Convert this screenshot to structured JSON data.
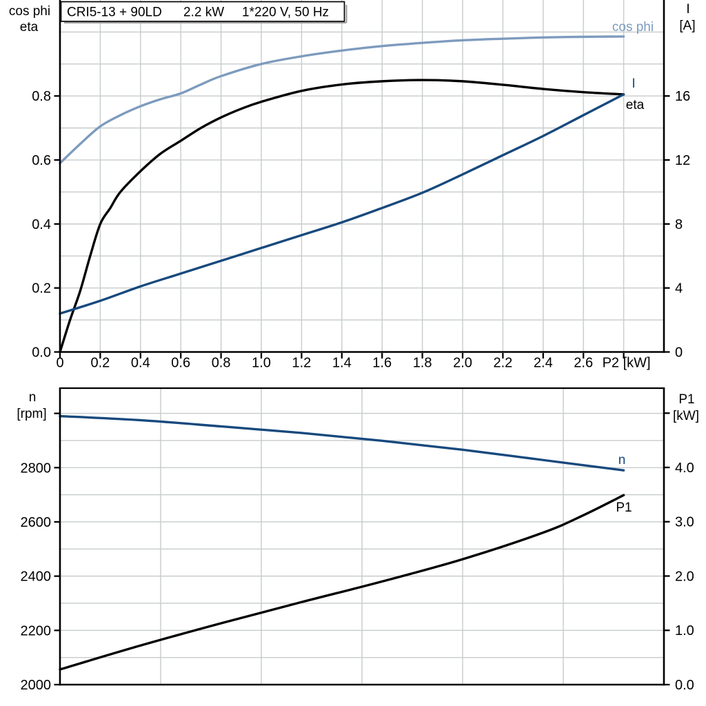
{
  "title": {
    "full": "CRI5-13 + 90LD   2.2 kW   1*220 V, 50 Hz",
    "parts": [
      "CRI5-13 + 90LD",
      "2.2 kW",
      "1*220 V, 50 Hz"
    ]
  },
  "colors": {
    "background": "#ffffff",
    "grid": "#c6cbcb",
    "axis": "#000000",
    "light_blue": "#7d9bbe",
    "dark_blue": "#17497d",
    "black": "#000000",
    "shadow": "#9a9a9a"
  },
  "chart_data": [
    {
      "type": "line",
      "title": "CRI5-13 + 90LD   2.2 kW   1*220 V, 50 Hz",
      "x_axis": {
        "label": "P2 [kW]",
        "range": [
          0,
          3.0
        ],
        "grid_step": 0.2,
        "tick_values": [
          0,
          0.2,
          0.4,
          0.6,
          0.8,
          1.0,
          1.2,
          1.4,
          1.6,
          1.8,
          2.0,
          2.2,
          2.4,
          2.6,
          2.8
        ],
        "tick_labels": [
          "0",
          "0.2",
          "0.4",
          "0.6",
          "0.8",
          "1.0",
          "1.2",
          "1.4",
          "1.6",
          "1.8",
          "2.0",
          "2.2",
          "2.4",
          "2.6",
          ""
        ],
        "label_at_value": 2.8
      },
      "y_left": {
        "label_lines": [
          "cos phi",
          "eta"
        ],
        "range": [
          0,
          1.1
        ],
        "grid_step": 0.1,
        "tick_values": [
          0,
          0.2,
          0.4,
          0.6,
          0.8
        ],
        "tick_labels": [
          "0.0",
          "0.2",
          "0.4",
          "0.6",
          "0.8"
        ]
      },
      "y_right": {
        "label_lines": [
          "I",
          "[A]"
        ],
        "range": [
          0,
          22
        ],
        "tick_values": [
          0,
          4,
          8,
          12,
          16
        ],
        "tick_labels": [
          "0",
          "4",
          "8",
          "12",
          "16"
        ]
      },
      "legend_position": "curve-end-labels",
      "grid": true,
      "series": [
        {
          "name": "cos phi",
          "axis": "left",
          "color": "#7d9bbe",
          "x": [
            0,
            0.1,
            0.2,
            0.3,
            0.4,
            0.5,
            0.6,
            0.7,
            0.8,
            1.0,
            1.2,
            1.4,
            1.6,
            1.8,
            2.0,
            2.2,
            2.4,
            2.6,
            2.8
          ],
          "y": [
            0.59,
            0.65,
            0.705,
            0.74,
            0.768,
            0.79,
            0.808,
            0.836,
            0.862,
            0.9,
            0.924,
            0.942,
            0.956,
            0.966,
            0.974,
            0.979,
            0.983,
            0.985,
            0.986
          ]
        },
        {
          "name": "eta",
          "axis": "left",
          "color": "#000000",
          "x": [
            0,
            0.05,
            0.1,
            0.15,
            0.2,
            0.25,
            0.3,
            0.4,
            0.5,
            0.6,
            0.7,
            0.8,
            0.9,
            1.0,
            1.2,
            1.4,
            1.6,
            1.8,
            2.0,
            2.2,
            2.4,
            2.6,
            2.8
          ],
          "y": [
            0,
            0.1,
            0.19,
            0.3,
            0.4,
            0.45,
            0.5,
            0.565,
            0.62,
            0.66,
            0.7,
            0.733,
            0.76,
            0.782,
            0.816,
            0.836,
            0.846,
            0.85,
            0.846,
            0.835,
            0.822,
            0.812,
            0.805
          ]
        },
        {
          "name": "I",
          "axis": "right",
          "color": "#17497d",
          "x": [
            0,
            0.2,
            0.4,
            0.6,
            0.8,
            1.0,
            1.2,
            1.4,
            1.6,
            1.8,
            2.0,
            2.2,
            2.4,
            2.6,
            2.8
          ],
          "y": [
            2.4,
            3.2,
            4.1,
            4.9,
            5.7,
            6.5,
            7.3,
            8.1,
            9.0,
            9.95,
            11.1,
            12.3,
            13.5,
            14.8,
            16.1
          ]
        }
      ]
    },
    {
      "type": "line",
      "title": "",
      "x_axis": {
        "label": "",
        "range": [
          0,
          3.0
        ],
        "grid_step": 0.5,
        "tick_values": [],
        "tick_labels": []
      },
      "y_left": {
        "label_lines": [
          "n",
          "[rpm]"
        ],
        "range": [
          2000,
          3093
        ],
        "grid_step": 100,
        "tick_values": [
          2000,
          2200,
          2400,
          2600,
          2800,
          3000
        ],
        "tick_labels": [
          "2000",
          "2200",
          "2400",
          "2600",
          "2800",
          ""
        ]
      },
      "y_right": {
        "label_lines": [
          "P1",
          "[kW]"
        ],
        "range": [
          0,
          5.46
        ],
        "tick_values": [
          0,
          1,
          2,
          3,
          4,
          5
        ],
        "tick_labels": [
          "0.0",
          "1.0",
          "2.0",
          "3.0",
          "4.0",
          ""
        ]
      },
      "legend_position": "curve-end-labels",
      "grid": true,
      "series": [
        {
          "name": "n",
          "axis": "left",
          "color": "#17497d",
          "x": [
            0,
            0.4,
            0.8,
            1.2,
            1.6,
            2.0,
            2.4,
            2.8
          ],
          "y": [
            2990,
            2975,
            2952,
            2928,
            2899,
            2866,
            2828,
            2790
          ]
        },
        {
          "name": "P1",
          "axis": "right",
          "color": "#000000",
          "x": [
            0,
            0.4,
            0.8,
            1.2,
            1.6,
            2.0,
            2.4,
            2.6,
            2.8
          ],
          "y": [
            0.28,
            0.72,
            1.13,
            1.52,
            1.9,
            2.31,
            2.8,
            3.12,
            3.49
          ]
        }
      ]
    }
  ]
}
